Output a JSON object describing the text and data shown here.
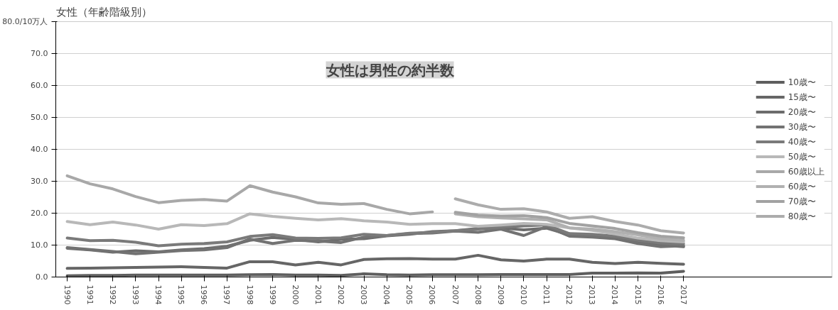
{
  "chart_data": {
    "type": "line",
    "title": "女性（年齢階級別）",
    "categories": [
      "1990",
      "1991",
      "1992",
      "1993",
      "1994",
      "1995",
      "1996",
      "1997",
      "1998",
      "1999",
      "2000",
      "2001",
      "2002",
      "2003",
      "2004",
      "2005",
      "2006",
      "2007",
      "2008",
      "2009",
      "2010",
      "2011",
      "2012",
      "2013",
      "2014",
      "2015",
      "2016",
      "2017"
    ],
    "series": [
      {
        "name": "10歳〜",
        "color": "#5e5e5e",
        "values": [
          0.4,
          0.5,
          0.5,
          0.6,
          0.6,
          0.6,
          0.6,
          0.6,
          0.7,
          0.8,
          0.6,
          0.6,
          0.5,
          1.0,
          0.7,
          0.6,
          0.7,
          0.7,
          0.7,
          0.8,
          0.8,
          0.8,
          0.8,
          1.2,
          1.2,
          1.3,
          1.2,
          1.8
        ]
      },
      {
        "name": "15歳〜",
        "color": "#666666",
        "values": [
          2.7,
          2.8,
          2.9,
          3.0,
          3.1,
          3.2,
          3.0,
          2.8,
          4.8,
          4.8,
          3.8,
          4.6,
          3.8,
          5.5,
          5.7,
          5.8,
          5.6,
          5.6,
          6.8,
          5.4,
          5.0,
          5.6,
          5.6,
          4.6,
          4.2,
          4.6,
          4.3,
          4.0
        ]
      },
      {
        "name": "20歳〜",
        "color": "#6c6c6c",
        "values": [
          9.0,
          8.5,
          7.8,
          8.2,
          7.9,
          8.5,
          8.9,
          9.6,
          11.5,
          12.4,
          11.8,
          11.0,
          11.8,
          12.0,
          12.9,
          13.4,
          14.2,
          14.5,
          15.2,
          15.4,
          14.8,
          15.3,
          13.2,
          12.8,
          12.4,
          10.8,
          10.0,
          9.5
        ]
      },
      {
        "name": "30歳〜",
        "color": "#727272",
        "values": [
          9.2,
          8.6,
          8.0,
          7.3,
          7.8,
          8.3,
          8.5,
          9.2,
          11.9,
          10.5,
          11.5,
          11.3,
          10.8,
          12.5,
          13.0,
          13.6,
          13.8,
          14.4,
          14.0,
          15.0,
          13.0,
          15.8,
          12.8,
          12.5,
          12.0,
          10.5,
          9.5,
          9.8
        ]
      },
      {
        "name": "40歳〜",
        "color": "#7a7a7a",
        "values": [
          12.2,
          11.4,
          11.5,
          10.9,
          9.8,
          10.3,
          10.5,
          11.0,
          12.7,
          13.3,
          12.2,
          12.1,
          12.3,
          13.4,
          13.0,
          13.7,
          14.0,
          14.5,
          15.0,
          15.6,
          16.0,
          16.3,
          13.6,
          13.4,
          12.8,
          11.5,
          10.6,
          10.4
        ]
      },
      {
        "name": "50歳〜",
        "color": "#b8b8b8",
        "values": [
          17.4,
          16.4,
          17.2,
          16.3,
          15.0,
          16.4,
          16.1,
          16.7,
          19.8,
          19.0,
          18.4,
          17.9,
          18.3,
          17.6,
          17.2,
          16.5,
          16.7,
          16.7,
          15.9,
          16.3,
          16.8,
          16.5,
          15.4,
          14.6,
          13.5,
          12.2,
          11.4,
          11.0
        ]
      },
      {
        "name": "60歳以上",
        "color": "#a8a8a8",
        "values": [
          31.7,
          29.2,
          27.6,
          25.2,
          23.3,
          24.0,
          24.3,
          23.8,
          28.6,
          26.6,
          25.1,
          23.2,
          22.8,
          23.0,
          21.2,
          19.8,
          20.4,
          null,
          null,
          null,
          null,
          null,
          null,
          null,
          null,
          null,
          null,
          null
        ]
      },
      {
        "name": "60歳〜",
        "color": "#b0b0b0",
        "values": [
          null,
          null,
          null,
          null,
          null,
          null,
          null,
          null,
          null,
          null,
          null,
          null,
          null,
          null,
          null,
          null,
          null,
          19.8,
          18.9,
          18.5,
          18.2,
          17.9,
          15.4,
          15.0,
          14.2,
          13.2,
          12.0,
          11.5
        ]
      },
      {
        "name": "70歳〜",
        "color": "#a2a2a2",
        "values": [
          null,
          null,
          null,
          null,
          null,
          null,
          null,
          null,
          null,
          null,
          null,
          null,
          null,
          null,
          null,
          null,
          null,
          20.3,
          19.4,
          19.1,
          19.2,
          18.6,
          16.8,
          16.0,
          15.2,
          13.9,
          12.8,
          12.3
        ]
      },
      {
        "name": "80歳〜",
        "color": "#acacac",
        "values": [
          null,
          null,
          null,
          null,
          null,
          null,
          null,
          null,
          null,
          null,
          null,
          null,
          null,
          null,
          null,
          null,
          null,
          24.5,
          22.6,
          21.2,
          21.4,
          20.4,
          18.4,
          18.9,
          17.4,
          16.3,
          14.5,
          13.8
        ]
      }
    ],
    "ylim": [
      0,
      80
    ],
    "yticks": [
      {
        "value": 0,
        "label": "0.0"
      },
      {
        "value": 10,
        "label": "10.0"
      },
      {
        "value": 20,
        "label": "20.0"
      },
      {
        "value": 30,
        "label": "30.0"
      },
      {
        "value": 40,
        "label": "40.0"
      },
      {
        "value": 50,
        "label": "50.0"
      },
      {
        "value": 60,
        "label": "60.0"
      },
      {
        "value": 70,
        "label": "70.0"
      },
      {
        "value": 80,
        "label": "80.0/10万人"
      }
    ],
    "annotations": [
      "女性は男性の約半数"
    ],
    "grid": "y",
    "legend": "right",
    "marker": "none",
    "line_style": "solid"
  }
}
